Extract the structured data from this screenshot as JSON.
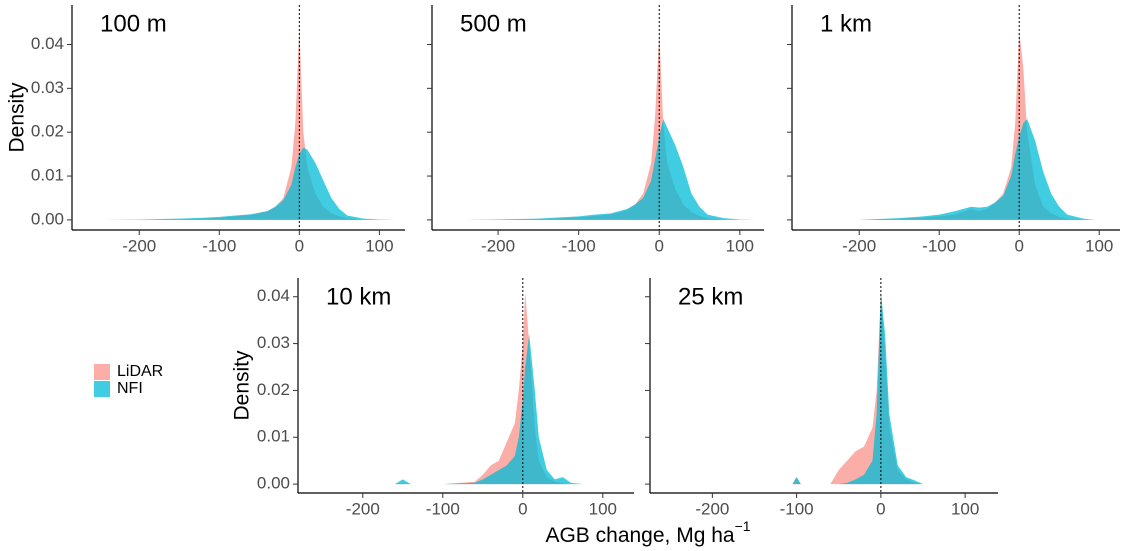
{
  "x_label": "AGB change, Mg ha",
  "x_label_superscript": "−1",
  "chart_data": [
    {
      "type": "area",
      "title": "100 m",
      "y_label": "Density",
      "vline": 0,
      "x": [
        -250,
        -200,
        -150,
        -120,
        -100,
        -80,
        -60,
        -40,
        -30,
        -20,
        -10,
        -5,
        0,
        5,
        10,
        20,
        30,
        40,
        50,
        60,
        80,
        100,
        120
      ],
      "series": [
        {
          "name": "LiDAR",
          "color": "#f8766d",
          "values": [
            0,
            0,
            0.0002,
            0.0003,
            0.0005,
            0.0008,
            0.0012,
            0.002,
            0.003,
            0.005,
            0.012,
            0.022,
            0.044,
            0.02,
            0.012,
            0.006,
            0.003,
            0.0015,
            0.0008,
            0.0004,
            0.0001,
            0,
            0
          ]
        },
        {
          "name": "NFI",
          "color": "#00bcd8",
          "values": [
            0,
            0.0001,
            0.0003,
            0.0005,
            0.0007,
            0.001,
            0.0013,
            0.002,
            0.003,
            0.0045,
            0.008,
            0.012,
            0.015,
            0.0165,
            0.016,
            0.013,
            0.009,
            0.005,
            0.0025,
            0.001,
            0.0003,
            0.0001,
            0
          ]
        }
      ],
      "xlim": [
        -284,
        132
      ],
      "ylim": [
        -0.0023,
        0.049
      ],
      "xticks": [
        -200,
        -100,
        0,
        100
      ],
      "yticks": [
        {
          "value": 0,
          "label": "0.00"
        },
        {
          "value": 0.01,
          "label": "0.01"
        },
        {
          "value": 0.02,
          "label": "0.02"
        },
        {
          "value": 0.03,
          "label": "0.03"
        },
        {
          "value": 0.04,
          "label": "0.04"
        }
      ]
    },
    {
      "type": "area",
      "title": "500 m",
      "vline": 0,
      "x": [
        -240,
        -200,
        -150,
        -120,
        -100,
        -80,
        -60,
        -40,
        -30,
        -20,
        -10,
        -5,
        0,
        5,
        10,
        20,
        30,
        40,
        50,
        60,
        80,
        100,
        120
      ],
      "series": [
        {
          "name": "LiDAR",
          "color": "#f8766d",
          "values": [
            0,
            0.0001,
            0.0002,
            0.0004,
            0.0006,
            0.0009,
            0.0013,
            0.0022,
            0.0035,
            0.006,
            0.013,
            0.024,
            0.043,
            0.022,
            0.013,
            0.007,
            0.0035,
            0.0018,
            0.0009,
            0.0004,
            0.0001,
            0,
            0
          ]
        },
        {
          "name": "NFI",
          "color": "#00bcd8",
          "values": [
            0,
            0.0001,
            0.0003,
            0.0006,
            0.0008,
            0.0012,
            0.0015,
            0.0025,
            0.0035,
            0.005,
            0.009,
            0.014,
            0.019,
            0.023,
            0.021,
            0.017,
            0.012,
            0.006,
            0.003,
            0.0012,
            0.0004,
            0.0001,
            0
          ]
        }
      ],
      "xlim": [
        -282,
        130
      ],
      "ylim": [
        -0.0023,
        0.049
      ],
      "xticks": [
        -200,
        -100,
        0,
        100
      ],
      "yticks": [
        0,
        0.01,
        0.02,
        0.03,
        0.04
      ]
    },
    {
      "type": "area",
      "title": "1 km",
      "vline": 0,
      "x": [
        -200,
        -150,
        -120,
        -100,
        -80,
        -60,
        -50,
        -40,
        -30,
        -20,
        -10,
        -5,
        0,
        5,
        10,
        20,
        30,
        40,
        50,
        60,
        80,
        95
      ],
      "series": [
        {
          "name": "LiDAR",
          "color": "#f8766d",
          "values": [
            0,
            0.0003,
            0.0005,
            0.0008,
            0.0012,
            0.0025,
            0.002,
            0.0025,
            0.004,
            0.006,
            0.012,
            0.022,
            0.043,
            0.035,
            0.02,
            0.008,
            0.003,
            0.0015,
            0.0007,
            0.0003,
            0.0001,
            0
          ]
        },
        {
          "name": "NFI",
          "color": "#00bcd8",
          "values": [
            0,
            0.0004,
            0.0008,
            0.0012,
            0.002,
            0.003,
            0.0028,
            0.003,
            0.004,
            0.0055,
            0.01,
            0.015,
            0.019,
            0.022,
            0.023,
            0.018,
            0.011,
            0.006,
            0.003,
            0.0012,
            0.0003,
            0
          ]
        }
      ],
      "xlim": [
        -284,
        126
      ],
      "ylim": [
        -0.0023,
        0.049
      ],
      "xticks": [
        -200,
        -100,
        0,
        100
      ],
      "yticks": [
        0,
        0.01,
        0.02,
        0.03,
        0.04
      ]
    },
    {
      "type": "area",
      "title": "10 km",
      "y_label": "Density",
      "vline": 0,
      "x": [
        -160,
        -150,
        -140,
        -100,
        -60,
        -50,
        -40,
        -30,
        -20,
        -10,
        -5,
        0,
        3,
        8,
        15,
        20,
        30,
        40,
        50,
        60,
        75
      ],
      "series": [
        {
          "name": "LiDAR",
          "color": "#f8766d",
          "values": [
            0,
            0.0002,
            0,
            0,
            0.0005,
            0.002,
            0.004,
            0.005,
            0.009,
            0.013,
            0.02,
            0.03,
            0.041,
            0.03,
            0.012,
            0.005,
            0.0015,
            0.0005,
            0.0002,
            0,
            0
          ]
        },
        {
          "name": "NFI",
          "color": "#00bcd8",
          "values": [
            0,
            0.001,
            0,
            0,
            0.0003,
            0.001,
            0.002,
            0.003,
            0.004,
            0.006,
            0.01,
            0.018,
            0.025,
            0.032,
            0.02,
            0.01,
            0.003,
            0.001,
            0.0015,
            0.0003,
            0
          ]
        }
      ],
      "xlim": [
        -281,
        139
      ],
      "ylim": [
        -0.0019,
        0.044
      ],
      "xticks": [
        -200,
        -100,
        0,
        100
      ],
      "yticks": [
        {
          "value": 0,
          "label": "0.00"
        },
        {
          "value": 0.01,
          "label": "0.01"
        },
        {
          "value": 0.02,
          "label": "0.02"
        },
        {
          "value": 0.03,
          "label": "0.03"
        },
        {
          "value": 0.04,
          "label": "0.04"
        }
      ]
    },
    {
      "type": "area",
      "title": "25 km",
      "vline": 0,
      "x": [
        -105,
        -100,
        -95,
        -60,
        -50,
        -40,
        -30,
        -20,
        -10,
        -5,
        0,
        5,
        10,
        20,
        30,
        40,
        50
      ],
      "series": [
        {
          "name": "LiDAR",
          "color": "#f8766d",
          "values": [
            0,
            0.0015,
            0,
            0,
            0.003,
            0.005,
            0.007,
            0.008,
            0.012,
            0.02,
            0.041,
            0.028,
            0.012,
            0.003,
            0.001,
            0.0003,
            0
          ]
        },
        {
          "name": "NFI",
          "color": "#00bcd8",
          "values": [
            0,
            0.0015,
            0,
            0,
            0,
            0.0003,
            0.001,
            0.002,
            0.005,
            0.015,
            0.041,
            0.032,
            0.015,
            0.004,
            0.0015,
            0.0008,
            0
          ]
        }
      ],
      "xlim": [
        -274,
        139
      ],
      "ylim": [
        -0.0019,
        0.044
      ],
      "xticks": [
        -200,
        -100,
        0,
        100
      ],
      "yticks": [
        0,
        0.01,
        0.02,
        0.03,
        0.04
      ]
    }
  ]
}
